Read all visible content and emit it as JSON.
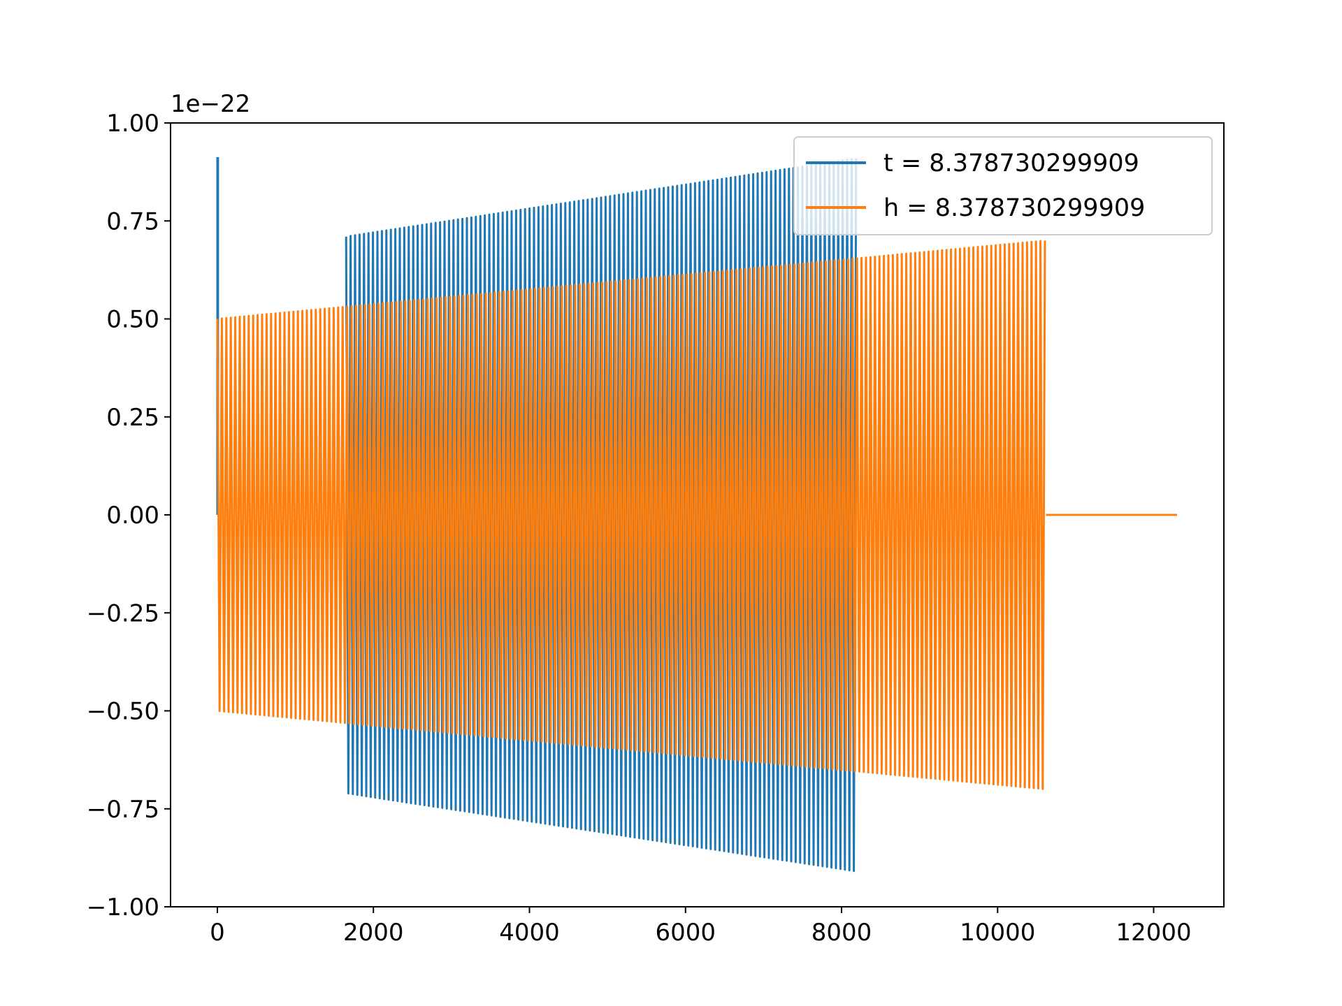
{
  "chart_data": {
    "type": "line",
    "title": "",
    "xlabel": "",
    "ylabel": "",
    "offset_text": "1e−22",
    "xlim": [
      -600,
      12900
    ],
    "ylim": [
      -1.0,
      1.0
    ],
    "y_scale_factor": 1e-22,
    "x_ticks": [
      0,
      2000,
      4000,
      6000,
      8000,
      10000,
      12000
    ],
    "x_tick_labels": [
      "0",
      "2000",
      "4000",
      "6000",
      "8000",
      "10000",
      "12000"
    ],
    "y_ticks": [
      -1.0,
      -0.75,
      -0.5,
      -0.25,
      0.0,
      0.25,
      0.5,
      0.75,
      1.0
    ],
    "y_tick_labels": [
      "−1.00",
      "−0.75",
      "−0.50",
      "−0.25",
      "0.00",
      "0.25",
      "0.50",
      "0.75",
      "1.00"
    ],
    "grid": false,
    "legend_position": "top-right",
    "series": [
      {
        "name": "t = 8.378730299909",
        "color": "#1f77b4",
        "spike": {
          "x": [
            0,
            8
          ],
          "y": [
            0.0,
            0.91
          ]
        },
        "x_start": 1650,
        "x_end": 8200,
        "amplitude_start": 0.71,
        "amplitude_end": 0.91
      },
      {
        "name": "h = 8.378730299909",
        "color": "#ff7f0e",
        "x_start": 0,
        "x_end": 10620,
        "amplitude_start": 0.5,
        "amplitude_end": 0.7,
        "x_flat_end": 12300,
        "flat_value": 0.0
      }
    ]
  }
}
